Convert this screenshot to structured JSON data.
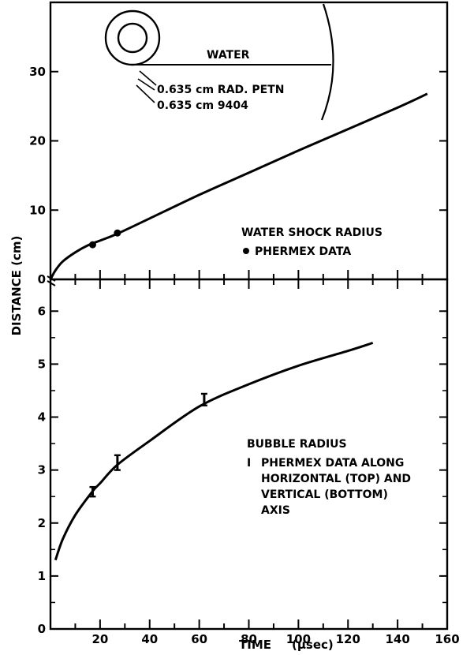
{
  "chart_data": [
    {
      "type": "line",
      "panel": "top",
      "xlim": [
        0,
        160
      ],
      "ylim": [
        0,
        40
      ],
      "y_ticks": [
        0,
        10,
        20,
        30
      ],
      "series": [
        {
          "name": "WATER SHOCK RADIUS",
          "kind": "curve",
          "x": [
            0,
            2,
            5,
            10,
            15,
            20,
            27,
            40,
            60,
            80,
            100,
            120,
            140,
            152
          ],
          "y": [
            0,
            1.3,
            2.6,
            3.9,
            4.9,
            5.6,
            6.6,
            8.8,
            12.2,
            15.4,
            18.6,
            21.7,
            24.8,
            26.8
          ]
        },
        {
          "name": "PHERMEX DATA",
          "kind": "points",
          "x": [
            17,
            27
          ],
          "y": [
            5.0,
            6.7
          ]
        }
      ],
      "annotations": {
        "legend_title": "WATER SHOCK RADIUS",
        "legend_item": "PHERMEX DATA",
        "inset_water": "WATER",
        "inset_petn": "0.635 cm RAD. PETN",
        "inset_9404": "0.635 cm 9404"
      }
    },
    {
      "type": "line",
      "panel": "bottom",
      "xlim": [
        0,
        160
      ],
      "ylim": [
        0,
        6.6
      ],
      "y_ticks": [
        0,
        1,
        2,
        3,
        4,
        5,
        6
      ],
      "x_ticks": [
        20,
        40,
        60,
        80,
        100,
        120,
        140,
        160
      ],
      "series": [
        {
          "name": "BUBBLE RADIUS",
          "kind": "curve",
          "x": [
            2,
            5,
            10,
            17,
            20,
            27,
            40,
            60,
            80,
            100,
            120,
            130
          ],
          "y": [
            1.3,
            1.7,
            2.15,
            2.6,
            2.75,
            3.1,
            3.55,
            4.2,
            4.62,
            4.97,
            5.25,
            5.4
          ]
        },
        {
          "name": "PHERMEX DATA",
          "kind": "errorbars",
          "x": [
            17,
            27,
            62
          ],
          "y": [
            2.6,
            3.15,
            4.33
          ],
          "y_low": [
            2.5,
            3.0,
            4.22
          ],
          "y_high": [
            2.68,
            3.28,
            4.44
          ]
        }
      ],
      "annotations": {
        "legend_title": "BUBBLE RADIUS",
        "legend_marker": "I",
        "legend_line1": "PHERMEX DATA ALONG",
        "legend_line2": "HORIZONTAL (TOP) AND",
        "legend_line3": "VERTICAL (BOTTOM)",
        "legend_line4": "AXIS"
      }
    }
  ],
  "axes": {
    "xlabel": "TIME",
    "xunit": "(μsec)",
    "ylabel": "DISTANCE  (cm)"
  }
}
